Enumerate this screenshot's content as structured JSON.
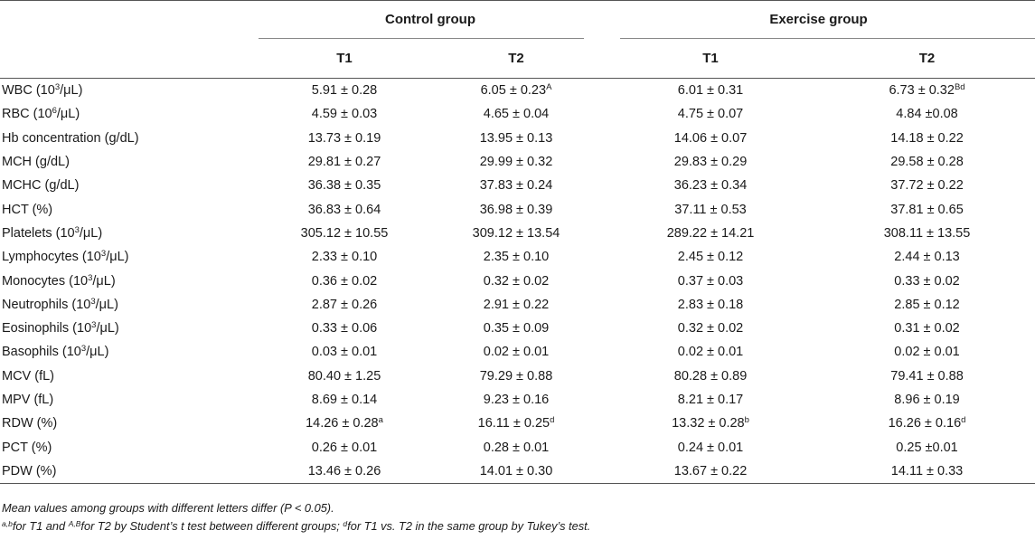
{
  "header": {
    "groups": [
      "Control group",
      "Exercise group"
    ],
    "periods": [
      "T1",
      "T2",
      "T1",
      "T2"
    ]
  },
  "rows": [
    {
      "label": "WBC (10",
      "label_sup": "3",
      "label_unit": "/μL)",
      "cells": [
        {
          "v": "5.91 ± 0.28",
          "s": ""
        },
        {
          "v": "6.05 ± 0.23",
          "s": "A"
        },
        {
          "v": "6.01 ± 0.31",
          "s": ""
        },
        {
          "v": "6.73 ± 0.32",
          "s": "Bd"
        }
      ]
    },
    {
      "label": "RBC (10",
      "label_sup": "6",
      "label_unit": "/μL)",
      "cells": [
        {
          "v": "4.59 ± 0.03",
          "s": ""
        },
        {
          "v": "4.65 ± 0.04",
          "s": ""
        },
        {
          "v": "4.75 ± 0.07",
          "s": ""
        },
        {
          "v": "4.84 ±0.08",
          "s": ""
        }
      ]
    },
    {
      "label": "Hb concentration (g/dL)",
      "label_sup": "",
      "label_unit": "",
      "cells": [
        {
          "v": "13.73 ± 0.19",
          "s": ""
        },
        {
          "v": "13.95 ± 0.13",
          "s": ""
        },
        {
          "v": "14.06 ± 0.07",
          "s": ""
        },
        {
          "v": "14.18 ± 0.22",
          "s": ""
        }
      ]
    },
    {
      "label": "MCH (g/dL)",
      "label_sup": "",
      "label_unit": "",
      "cells": [
        {
          "v": "29.81 ± 0.27",
          "s": ""
        },
        {
          "v": "29.99 ± 0.32",
          "s": ""
        },
        {
          "v": "29.83 ± 0.29",
          "s": ""
        },
        {
          "v": "29.58 ± 0.28",
          "s": ""
        }
      ]
    },
    {
      "label": "MCHC (g/dL)",
      "label_sup": "",
      "label_unit": "",
      "cells": [
        {
          "v": "36.38 ± 0.35",
          "s": ""
        },
        {
          "v": "37.83 ± 0.24",
          "s": ""
        },
        {
          "v": "36.23 ± 0.34",
          "s": ""
        },
        {
          "v": "37.72 ± 0.22",
          "s": ""
        }
      ]
    },
    {
      "label": "HCT (%)",
      "label_sup": "",
      "label_unit": "",
      "cells": [
        {
          "v": "36.83 ± 0.64",
          "s": ""
        },
        {
          "v": "36.98 ± 0.39",
          "s": ""
        },
        {
          "v": "37.11 ± 0.53",
          "s": ""
        },
        {
          "v": "37.81 ± 0.65",
          "s": ""
        }
      ]
    },
    {
      "label": "Platelets (10",
      "label_sup": "3",
      "label_unit": "/μL)",
      "cells": [
        {
          "v": "305.12 ± 10.55",
          "s": ""
        },
        {
          "v": "309.12 ± 13.54",
          "s": ""
        },
        {
          "v": "289.22 ± 14.21",
          "s": ""
        },
        {
          "v": "308.11 ± 13.55",
          "s": ""
        }
      ]
    },
    {
      "label": "Lymphocytes (10",
      "label_sup": "3",
      "label_unit": "/μL)",
      "cells": [
        {
          "v": "2.33 ± 0.10",
          "s": ""
        },
        {
          "v": "2.35 ± 0.10",
          "s": ""
        },
        {
          "v": "2.45 ± 0.12",
          "s": ""
        },
        {
          "v": "2.44 ± 0.13",
          "s": ""
        }
      ]
    },
    {
      "label": "Monocytes (10",
      "label_sup": "3",
      "label_unit": "/μL)",
      "cells": [
        {
          "v": "0.36 ± 0.02",
          "s": ""
        },
        {
          "v": "0.32 ± 0.02",
          "s": ""
        },
        {
          "v": "0.37 ± 0.03",
          "s": ""
        },
        {
          "v": "0.33 ± 0.02",
          "s": ""
        }
      ]
    },
    {
      "label": "Neutrophils (10",
      "label_sup": "3",
      "label_unit": "/μL)",
      "cells": [
        {
          "v": "2.87 ± 0.26",
          "s": ""
        },
        {
          "v": "2.91 ± 0.22",
          "s": ""
        },
        {
          "v": "2.83 ± 0.18",
          "s": ""
        },
        {
          "v": "2.85 ± 0.12",
          "s": ""
        }
      ]
    },
    {
      "label": "Eosinophils (10",
      "label_sup": "3",
      "label_unit": "/μL)",
      "cells": [
        {
          "v": "0.33 ± 0.06",
          "s": ""
        },
        {
          "v": "0.35 ± 0.09",
          "s": ""
        },
        {
          "v": "0.32 ± 0.02",
          "s": ""
        },
        {
          "v": "0.31 ± 0.02",
          "s": ""
        }
      ]
    },
    {
      "label": "Basophils (10",
      "label_sup": "3",
      "label_unit": "/μL)",
      "cells": [
        {
          "v": "0.03 ± 0.01",
          "s": ""
        },
        {
          "v": "0.02 ± 0.01",
          "s": ""
        },
        {
          "v": "0.02 ± 0.01",
          "s": ""
        },
        {
          "v": "0.02 ± 0.01",
          "s": ""
        }
      ]
    },
    {
      "label": "MCV (fL)",
      "label_sup": "",
      "label_unit": "",
      "cells": [
        {
          "v": "80.40 ± 1.25",
          "s": ""
        },
        {
          "v": "79.29 ± 0.88",
          "s": ""
        },
        {
          "v": "80.28 ± 0.89",
          "s": ""
        },
        {
          "v": "79.41 ± 0.88",
          "s": ""
        }
      ]
    },
    {
      "label": "MPV (fL)",
      "label_sup": "",
      "label_unit": "",
      "cells": [
        {
          "v": "8.69 ± 0.14",
          "s": ""
        },
        {
          "v": "9.23 ± 0.16",
          "s": ""
        },
        {
          "v": "8.21 ± 0.17",
          "s": ""
        },
        {
          "v": "8.96 ± 0.19",
          "s": ""
        }
      ]
    },
    {
      "label": "RDW (%)",
      "label_sup": "",
      "label_unit": "",
      "cells": [
        {
          "v": "14.26 ± 0.28",
          "s": "a"
        },
        {
          "v": "16.11 ± 0.25",
          "s": "d"
        },
        {
          "v": "13.32 ± 0.28",
          "s": "b"
        },
        {
          "v": "16.26 ± 0.16",
          "s": "d"
        }
      ]
    },
    {
      "label": "PCT (%)",
      "label_sup": "",
      "label_unit": "",
      "cells": [
        {
          "v": "0.26 ± 0.01",
          "s": ""
        },
        {
          "v": "0.28 ± 0.01",
          "s": ""
        },
        {
          "v": "0.24 ± 0.01",
          "s": ""
        },
        {
          "v": "0.25 ±0.01",
          "s": ""
        }
      ]
    },
    {
      "label": "PDW (%)",
      "label_sup": "",
      "label_unit": "",
      "cells": [
        {
          "v": "13.46 ± 0.26",
          "s": ""
        },
        {
          "v": "14.01 ± 0.30",
          "s": ""
        },
        {
          "v": "13.67 ± 0.22",
          "s": ""
        },
        {
          "v": "14.11 ± 0.33",
          "s": ""
        }
      ]
    }
  ],
  "footnotes": {
    "line1": "Mean values among groups with different letters differ (P < 0.05).",
    "line2": [
      {
        "sup": "a,b",
        "text": "for T1 and "
      },
      {
        "sup": "A,B",
        "text": "for T2 by Student’s t test between different groups; "
      },
      {
        "sup": "d",
        "text": "for T1 vs. T2 in the same group by Tukey’s test."
      }
    ]
  }
}
